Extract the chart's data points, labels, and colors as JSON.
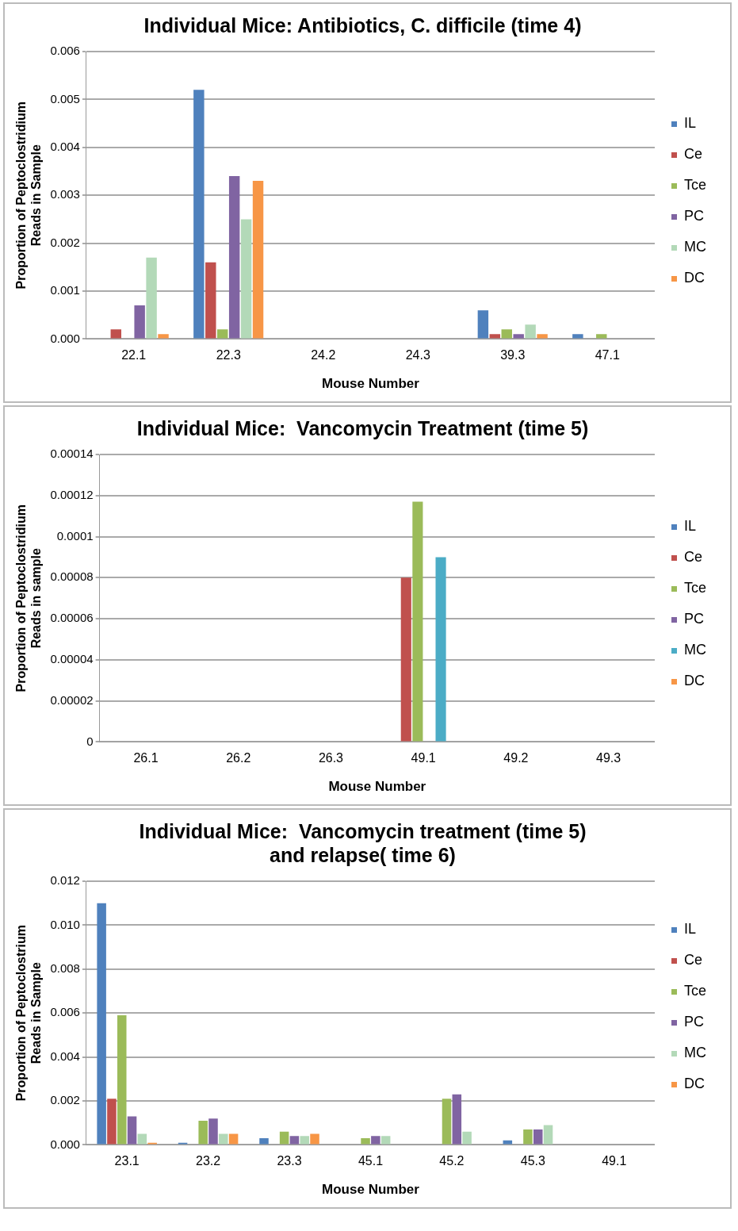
{
  "chart_data": [
    {
      "type": "bar",
      "title": "Individual Mice: Antibiotics, C. difficile (time 4)",
      "xlabel": "Mouse Number",
      "ylabel": "Proportion of Peptoclostridium Reads in Sample",
      "categories": [
        "22.1",
        "22.3",
        "24.2",
        "24.3",
        "39.3",
        "47.1"
      ],
      "ylim": [
        0,
        0.006
      ],
      "yticks": [
        {
          "value": 0,
          "label": "0.000"
        },
        {
          "value": 0.001,
          "label": "0.001"
        },
        {
          "value": 0.002,
          "label": "0.002"
        },
        {
          "value": 0.003,
          "label": "0.003"
        },
        {
          "value": 0.004,
          "label": "0.004"
        },
        {
          "value": 0.005,
          "label": "0.005"
        },
        {
          "value": 0.006,
          "label": "0.006"
        }
      ],
      "grid": "y",
      "legend": "right",
      "series": [
        {
          "name": "IL",
          "color": "#4f81bd",
          "values": [
            0,
            0.0052,
            0,
            0,
            0.0006,
            0.0001
          ]
        },
        {
          "name": "Ce",
          "color": "#c0504d",
          "values": [
            0.0002,
            0.0016,
            0,
            0,
            0.0001,
            0
          ]
        },
        {
          "name": "Tce",
          "color": "#9bbb59",
          "values": [
            0,
            0.0002,
            0,
            0,
            0.0002,
            0.0001
          ]
        },
        {
          "name": "PC",
          "color": "#8064a2",
          "values": [
            0.0007,
            0.0034,
            0,
            0,
            0.0001,
            0
          ]
        },
        {
          "name": "MC",
          "color": "#b3d9b8",
          "values": [
            0.0017,
            0.0025,
            0,
            0,
            0.0003,
            0
          ]
        },
        {
          "name": "DC",
          "color": "#f79646",
          "values": [
            0.0001,
            0.0033,
            0,
            0,
            0.0001,
            0
          ]
        }
      ]
    },
    {
      "type": "bar",
      "title": "Individual Mice:  Vancomycin Treatment (time 5)",
      "xlabel": "Mouse Number",
      "ylabel": "Proportion of Peptoclostridium Reads in sample",
      "categories": [
        "26.1",
        "26.2",
        "26.3",
        "49.1",
        "49.2",
        "49.3"
      ],
      "ylim": [
        0,
        0.00014
      ],
      "yticks": [
        {
          "value": 0,
          "label": "0"
        },
        {
          "value": 2e-05,
          "label": "0.00002"
        },
        {
          "value": 4e-05,
          "label": "0.00004"
        },
        {
          "value": 6e-05,
          "label": "0.00006"
        },
        {
          "value": 8e-05,
          "label": "0.00008"
        },
        {
          "value": 0.0001,
          "label": "0.0001"
        },
        {
          "value": 0.00012,
          "label": "0.00012"
        },
        {
          "value": 0.00014,
          "label": "0.00014"
        }
      ],
      "grid": "y",
      "legend": "right",
      "series": [
        {
          "name": "IL",
          "color": "#4f81bd",
          "values": [
            0,
            0,
            0,
            0,
            0,
            0
          ]
        },
        {
          "name": "Ce",
          "color": "#c0504d",
          "values": [
            0,
            0,
            0,
            8e-05,
            0,
            0
          ]
        },
        {
          "name": "Tce",
          "color": "#9bbb59",
          "values": [
            0,
            0,
            0,
            0.000117,
            0,
            0
          ]
        },
        {
          "name": "PC",
          "color": "#8064a2",
          "values": [
            0,
            0,
            0,
            0,
            0,
            0
          ]
        },
        {
          "name": "MC",
          "color": "#4bacc6",
          "values": [
            0,
            0,
            0,
            9e-05,
            0,
            0
          ]
        },
        {
          "name": "DC",
          "color": "#f79646",
          "values": [
            0,
            0,
            0,
            0,
            0,
            0
          ]
        }
      ]
    },
    {
      "type": "bar",
      "title": "Individual Mice:  Vancomycin treatment (time 5)\nand relapse( time 6)",
      "xlabel": "Mouse Number",
      "ylabel": "Proportion of Peptoclostrium Reads in Sample",
      "categories": [
        "23.1",
        "23.2",
        "23.3",
        "45.1",
        "45.2",
        "45.3",
        "49.1"
      ],
      "ylim": [
        0,
        0.012
      ],
      "yticks": [
        {
          "value": 0,
          "label": "0.000"
        },
        {
          "value": 0.002,
          "label": "0.002"
        },
        {
          "value": 0.004,
          "label": "0.004"
        },
        {
          "value": 0.006,
          "label": "0.006"
        },
        {
          "value": 0.008,
          "label": "0.008"
        },
        {
          "value": 0.01,
          "label": "0.010"
        },
        {
          "value": 0.012,
          "label": "0.012"
        }
      ],
      "grid": "y",
      "legend": "right",
      "series": [
        {
          "name": "IL",
          "color": "#4f81bd",
          "values": [
            0.011,
            0.0001,
            0.0003,
            0,
            0,
            0.0002,
            0
          ]
        },
        {
          "name": "Ce",
          "color": "#c0504d",
          "values": [
            0.0021,
            0,
            0,
            0,
            0,
            0,
            0
          ]
        },
        {
          "name": "Tce",
          "color": "#9bbb59",
          "values": [
            0.0059,
            0.0011,
            0.0006,
            0.0003,
            0.0021,
            0.0007,
            0
          ]
        },
        {
          "name": "PC",
          "color": "#8064a2",
          "values": [
            0.0013,
            0.0012,
            0.0004,
            0.0004,
            0.0023,
            0.0007,
            0
          ]
        },
        {
          "name": "MC",
          "color": "#b3d9b8",
          "values": [
            0.0005,
            0.0005,
            0.0004,
            0.0004,
            0.0006,
            0.0009,
            0
          ]
        },
        {
          "name": "DC",
          "color": "#f79646",
          "values": [
            0.0001,
            0.0005,
            0.0005,
            0,
            0,
            0,
            0
          ]
        }
      ]
    }
  ]
}
